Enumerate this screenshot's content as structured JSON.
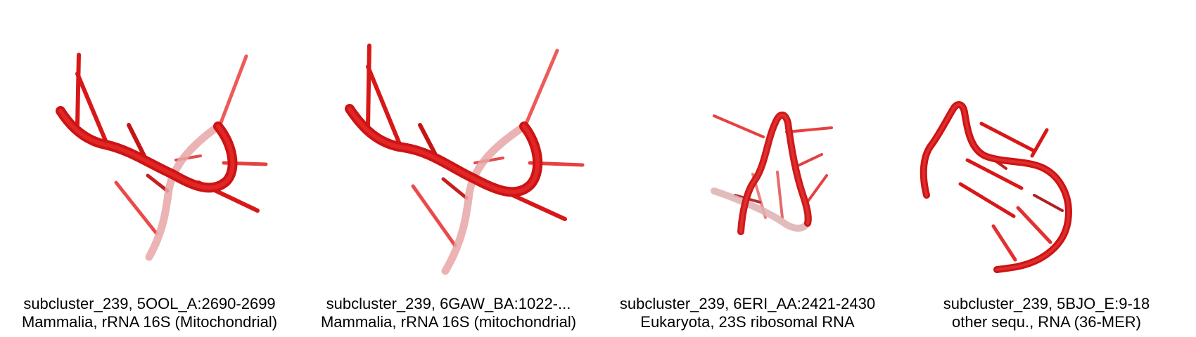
{
  "accent_color": "#e21a1a",
  "panels": [
    {
      "line1": "subcluster_239, 5OOL_A:2690-2699",
      "line2": "Mammalia, rRNA 16S (Mitochondrial)"
    },
    {
      "line1": "subcluster_239, 6GAW_BA:1022-...",
      "line2": "Mammalia, rRNA 16S (mitochondrial)"
    },
    {
      "line1": "subcluster_239, 6ERI_AA:2421-2430",
      "line2": "Eukaryota, 23S ribosomal RNA"
    },
    {
      "line1": "subcluster_239, 5BJO_E:9-18",
      "line2": "other sequ., RNA (36-MER)"
    }
  ]
}
